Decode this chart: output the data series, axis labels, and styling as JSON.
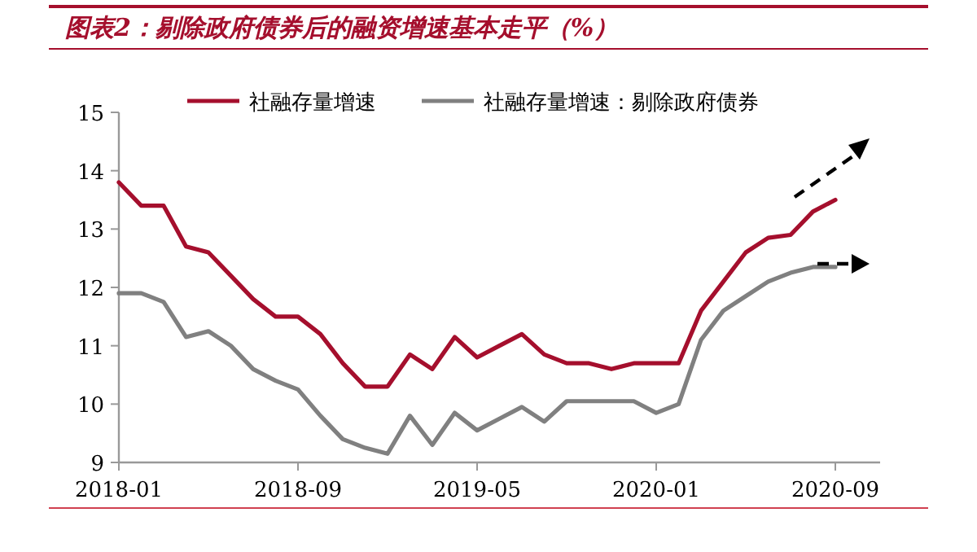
{
  "chart_data": {
    "type": "line",
    "title": "图表2：剔除政府债券后的融资增速基本走平（%）",
    "x": [
      "2018-01",
      "2018-02",
      "2018-03",
      "2018-04",
      "2018-05",
      "2018-06",
      "2018-07",
      "2018-08",
      "2018-09",
      "2018-10",
      "2018-11",
      "2018-12",
      "2019-01",
      "2019-02",
      "2019-03",
      "2019-04",
      "2019-05",
      "2019-06",
      "2019-07",
      "2019-08",
      "2019-09",
      "2019-10",
      "2019-11",
      "2019-12",
      "2020-01",
      "2020-02",
      "2020-03",
      "2020-04",
      "2020-05",
      "2020-06",
      "2020-07",
      "2020-08",
      "2020-09"
    ],
    "series": [
      {
        "name": "社融存量增速",
        "color": "#a50f2d",
        "values": [
          13.8,
          13.4,
          13.4,
          12.7,
          12.6,
          12.2,
          11.8,
          11.5,
          11.5,
          11.2,
          10.7,
          10.3,
          10.3,
          10.85,
          10.6,
          11.15,
          10.8,
          11.0,
          11.2,
          10.85,
          10.7,
          10.7,
          10.6,
          10.7,
          10.7,
          10.7,
          11.6,
          12.1,
          12.6,
          12.85,
          12.9,
          13.3,
          13.5
        ]
      },
      {
        "name": "社融存量增速：剔除政府债券",
        "color": "#808080",
        "values": [
          11.9,
          11.9,
          11.75,
          11.15,
          11.25,
          11.0,
          10.6,
          10.4,
          10.25,
          9.8,
          9.4,
          9.25,
          9.15,
          9.8,
          9.3,
          9.85,
          9.55,
          9.75,
          9.95,
          9.7,
          10.05,
          10.05,
          10.05,
          10.05,
          9.85,
          10.0,
          11.1,
          11.6,
          11.85,
          12.1,
          12.25,
          12.35,
          12.35
        ]
      }
    ],
    "xlim": [
      "2018-01",
      "2020-11"
    ],
    "xticks": [
      "2018-01",
      "2018-09",
      "2019-05",
      "2020-01",
      "2020-09"
    ],
    "ylim": [
      9,
      15
    ],
    "yticks": [
      9,
      10,
      11,
      12,
      13,
      14,
      15
    ],
    "grid": false,
    "legend": "top left",
    "marker": "none",
    "line_style": "solid"
  }
}
